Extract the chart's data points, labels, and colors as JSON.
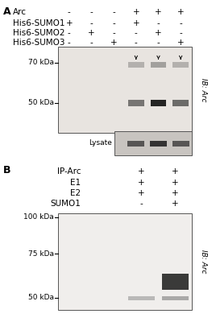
{
  "panel_A": {
    "label": "A",
    "rows": {
      "Arc": [
        "-",
        "-",
        "-",
        "+",
        "+",
        "+"
      ],
      "His6-SUMO1": [
        "+",
        "-",
        "-",
        "+",
        "-",
        "-"
      ],
      "His6-SUMO2": [
        "-",
        "+",
        "-",
        "-",
        "+",
        "-"
      ],
      "His6-SUMO3": [
        "-",
        "-",
        "+",
        "-",
        "-",
        "+"
      ]
    },
    "row_order": [
      "Arc",
      "His6-SUMO1",
      "His6-SUMO2",
      "His6-SUMO3"
    ],
    "n_lanes": 6,
    "blot_label": "IB: Arc",
    "marker_70": "70 kDa",
    "marker_50": "50 kDa",
    "lysate_label": "Lysate",
    "blot_bg": "#e8e4e0",
    "band_color_50": "#1a1a1a",
    "band_color_70": "#3a3a3a",
    "lysate_bg": "#c8c4c0",
    "lysate_band_color": "#1a1a1a"
  },
  "panel_B": {
    "label": "B",
    "rows": {
      "IP-Arc": [
        "+",
        "+"
      ],
      "E1": [
        "+",
        "+"
      ],
      "E2": [
        "+",
        "+"
      ],
      "SUMO1": [
        "-",
        "+"
      ]
    },
    "row_order": [
      "IP-Arc",
      "E1",
      "E2",
      "SUMO1"
    ],
    "n_lanes": 2,
    "blot_label": "IB: Arc",
    "marker_100": "100 kDa",
    "marker_75": "75 kDa",
    "marker_50": "50 kDa",
    "blot_bg": "#f0eeec",
    "band_color_60": "#1a1a1a",
    "band_color_50": "#555555"
  },
  "figure_bg": "#ffffff",
  "font_size_label": 7.5,
  "font_size_marker": 6.5,
  "font_size_row": 7,
  "font_size_panel": 9
}
